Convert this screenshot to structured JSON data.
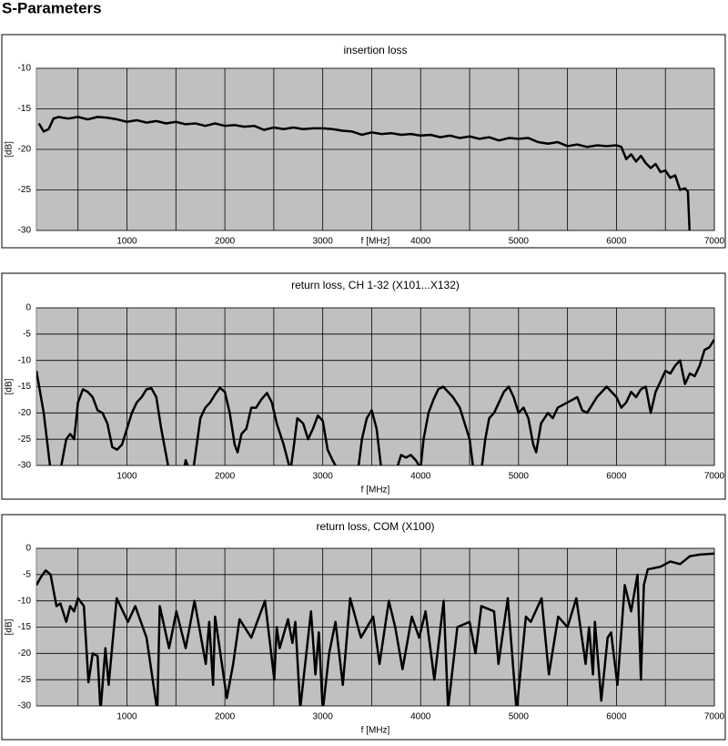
{
  "title": "S-Parameters",
  "chart_data": [
    {
      "type": "line",
      "title": "insertion loss",
      "x_label": "f [MHz]",
      "y_label": "[dB]",
      "xlim": [
        75,
        7000
      ],
      "ylim": [
        -30,
        -10
      ],
      "xticks": [
        1000,
        2000,
        3000,
        4000,
        5000,
        6000,
        7000
      ],
      "yticks": [
        -10,
        -15,
        -20,
        -25,
        -30
      ],
      "x_minor_grid": [
        500,
        1500,
        2500,
        3500,
        4500,
        5500,
        6500
      ],
      "grid": true,
      "plot_background": "#c0c0c0",
      "x": [
        100,
        150,
        200,
        250,
        300,
        400,
        500,
        600,
        700,
        800,
        900,
        1000,
        1100,
        1200,
        1300,
        1400,
        1500,
        1600,
        1700,
        1800,
        1900,
        2000,
        2100,
        2200,
        2300,
        2400,
        2500,
        2600,
        2700,
        2800,
        2900,
        3000,
        3100,
        3200,
        3300,
        3400,
        3500,
        3600,
        3700,
        3800,
        3900,
        4000,
        4100,
        4200,
        4300,
        4400,
        4500,
        4600,
        4700,
        4800,
        4900,
        5000,
        5100,
        5200,
        5300,
        5400,
        5500,
        5600,
        5700,
        5800,
        5900,
        6000,
        6050,
        6100,
        6150,
        6200,
        6250,
        6300,
        6350,
        6400,
        6450,
        6500,
        6550,
        6600,
        6650,
        6700,
        6730,
        6750
      ],
      "series": [
        {
          "color": "#000000",
          "values": [
            -16.8,
            -17.8,
            -17.5,
            -16.2,
            -16,
            -16.2,
            -16,
            -16.3,
            -16,
            -16.1,
            -16.3,
            -16.6,
            -16.4,
            -16.7,
            -16.5,
            -16.8,
            -16.6,
            -16.9,
            -16.8,
            -17.1,
            -16.8,
            -17.1,
            -17,
            -17.2,
            -17.1,
            -17.6,
            -17.3,
            -17.5,
            -17.3,
            -17.5,
            -17.4,
            -17.4,
            -17.5,
            -17.7,
            -17.8,
            -18.2,
            -17.9,
            -18.1,
            -18,
            -18.2,
            -18.1,
            -18.3,
            -18.2,
            -18.5,
            -18.3,
            -18.6,
            -18.4,
            -18.7,
            -18.5,
            -18.9,
            -18.6,
            -18.7,
            -18.6,
            -19.1,
            -19.3,
            -19.1,
            -19.6,
            -19.4,
            -19.7,
            -19.5,
            -19.6,
            -19.5,
            -19.7,
            -21.2,
            -20.6,
            -21.5,
            -20.8,
            -21.7,
            -22.3,
            -21.8,
            -22.8,
            -22.6,
            -23.5,
            -23.2,
            -25,
            -24.8,
            -25.2,
            -31
          ]
        }
      ]
    },
    {
      "type": "line",
      "title": "return loss, CH 1-32 (X101...X132)",
      "x_label": "f [MHz]",
      "y_label": "[dB]",
      "xlim": [
        75,
        7000
      ],
      "ylim": [
        -30,
        0
      ],
      "xticks": [
        1000,
        2000,
        3000,
        4000,
        5000,
        6000,
        7000
      ],
      "yticks": [
        0,
        -5,
        -10,
        -15,
        -20,
        -25,
        -30
      ],
      "x_minor_grid": [
        500,
        1500,
        2500,
        3500,
        4500,
        5500,
        6500
      ],
      "grid": true,
      "plot_background": "#c0c0c0",
      "x": [
        75,
        150,
        220,
        320,
        380,
        420,
        460,
        500,
        550,
        600,
        650,
        700,
        750,
        800,
        850,
        900,
        950,
        1000,
        1050,
        1100,
        1150,
        1200,
        1250,
        1300,
        1350,
        1400,
        1430,
        1580,
        1600,
        1640,
        1680,
        1750,
        1800,
        1850,
        1900,
        1950,
        2000,
        2050,
        2100,
        2130,
        2170,
        2220,
        2270,
        2320,
        2370,
        2430,
        2480,
        2530,
        2600,
        2670,
        2700,
        2740,
        2800,
        2850,
        2900,
        2950,
        3000,
        3050,
        3100,
        3160,
        3360,
        3400,
        3450,
        3500,
        3550,
        3600,
        3750,
        3800,
        3850,
        3900,
        3950,
        4000,
        4030,
        4080,
        4130,
        4180,
        4230,
        4280,
        4330,
        4400,
        4450,
        4500,
        4540,
        4620,
        4660,
        4700,
        4750,
        4800,
        4850,
        4900,
        4950,
        5000,
        5050,
        5100,
        5150,
        5180,
        5230,
        5300,
        5350,
        5400,
        5500,
        5600,
        5650,
        5700,
        5800,
        5900,
        6000,
        6050,
        6100,
        6150,
        6200,
        6250,
        6300,
        6350,
        6400,
        6450,
        6500,
        6550,
        6600,
        6650,
        6700,
        6750,
        6800,
        6850,
        6900,
        6950,
        7000
      ],
      "series": [
        {
          "color": "#000000",
          "values": [
            -12,
            -20,
            -31,
            -31,
            -25,
            -24,
            -25,
            -18,
            -15.5,
            -16,
            -17,
            -19.5,
            -20,
            -22,
            -26.5,
            -27,
            -26,
            -23,
            -20,
            -18,
            -17,
            -15.5,
            -15.3,
            -17,
            -23,
            -28,
            -31,
            -31,
            -29,
            -31,
            -30.5,
            -21,
            -19,
            -18,
            -16.5,
            -15.2,
            -16,
            -20,
            -26,
            -27.5,
            -24,
            -23,
            -19,
            -19,
            -17.5,
            -16.2,
            -18,
            -22,
            -26,
            -31,
            -27,
            -21,
            -22,
            -25,
            -23,
            -20.5,
            -21.5,
            -27,
            -29,
            -31,
            -31,
            -25,
            -21,
            -19.5,
            -23,
            -31,
            -31,
            -28,
            -28.5,
            -28,
            -29,
            -30.5,
            -25,
            -20,
            -17.5,
            -15.5,
            -15,
            -16,
            -17,
            -19,
            -22,
            -25,
            -31,
            -31,
            -25,
            -21,
            -20,
            -18,
            -16,
            -15,
            -17,
            -20,
            -19,
            -21,
            -26,
            -27.5,
            -22,
            -20,
            -21,
            -19,
            -18,
            -17,
            -19.5,
            -20,
            -17,
            -15,
            -17,
            -19,
            -18,
            -16,
            -17,
            -15.5,
            -15,
            -20,
            -16,
            -14,
            -12,
            -12.5,
            -11,
            -10,
            -14.5,
            -12.5,
            -13,
            -11,
            -8,
            -7.5,
            -6
          ]
        }
      ]
    },
    {
      "type": "line",
      "title": "return loss, COM (X100)",
      "x_label": "f [MHz]",
      "y_label": "[dB]",
      "xlim": [
        75,
        7000
      ],
      "ylim": [
        -30,
        0
      ],
      "xticks": [
        1000,
        2000,
        3000,
        4000,
        5000,
        6000,
        7000
      ],
      "yticks": [
        0,
        -5,
        -10,
        -15,
        -20,
        -25,
        -30
      ],
      "x_minor_grid": [
        500,
        1500,
        2500,
        3500,
        4500,
        5500,
        6500
      ],
      "grid": true,
      "plot_background": "#c0c0c0",
      "x": [
        75,
        120,
        170,
        220,
        280,
        320,
        380,
        420,
        460,
        500,
        560,
        607,
        650,
        700,
        730,
        780,
        813,
        895,
        1010,
        1085,
        1200,
        1310,
        1335,
        1430,
        1505,
        1600,
        1690,
        1805,
        1840,
        1880,
        1900,
        2020,
        2085,
        2150,
        2270,
        2410,
        2505,
        2530,
        2560,
        2645,
        2690,
        2720,
        2770,
        2880,
        2925,
        2960,
        3000,
        3065,
        3130,
        3205,
        3280,
        3390,
        3515,
        3580,
        3675,
        3740,
        3815,
        3910,
        3985,
        4050,
        4140,
        4235,
        4280,
        4375,
        4500,
        4560,
        4620,
        4750,
        4795,
        4890,
        4980,
        5075,
        5125,
        5235,
        5310,
        5405,
        5500,
        5590,
        5685,
        5720,
        5760,
        5780,
        5845,
        5910,
        5945,
        6010,
        6085,
        6150,
        6215,
        6250,
        6280,
        6320,
        6450,
        6550,
        6650,
        6750,
        6850,
        7000
      ],
      "series": [
        {
          "color": "#000000",
          "values": [
            -7,
            -5.5,
            -4.2,
            -5,
            -11,
            -10.5,
            -14,
            -11,
            -12,
            -9.5,
            -11,
            -25.5,
            -20,
            -20.5,
            -31,
            -19,
            -26,
            -9.5,
            -14,
            -11,
            -17,
            -31,
            -11,
            -19,
            -12,
            -19,
            -10,
            -22,
            -14,
            -26,
            -13,
            -28.5,
            -22,
            -13.5,
            -17,
            -10,
            -25,
            -15,
            -19,
            -13.5,
            -18,
            -14,
            -30.5,
            -12,
            -24,
            -16,
            -31,
            -20,
            -14,
            -26,
            -9.5,
            -17,
            -13,
            -22,
            -10,
            -15,
            -23,
            -13,
            -17,
            -12,
            -25,
            -10,
            -30.5,
            -15,
            -14,
            -20,
            -11,
            -12,
            -22,
            -9.5,
            -31,
            -13,
            -14,
            -9.5,
            -24,
            -13,
            -15,
            -9.5,
            -22,
            -15,
            -24,
            -14,
            -29,
            -17,
            -16,
            -26,
            -7,
            -12,
            -5,
            -25,
            -7,
            -4,
            -3.5,
            -2.5,
            -3,
            -1.5,
            -1.2,
            -1
          ]
        }
      ]
    }
  ]
}
